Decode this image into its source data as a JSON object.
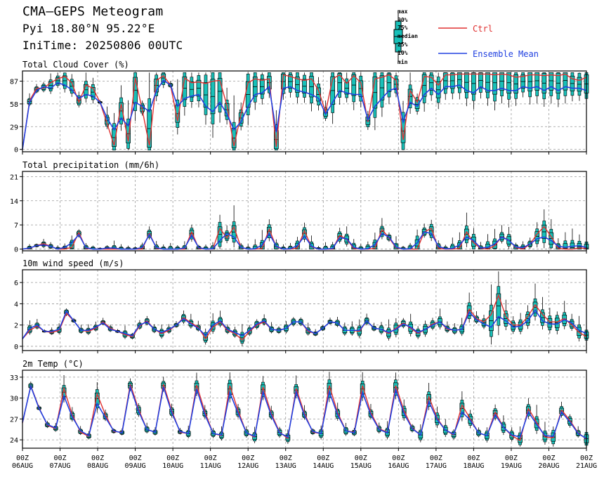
{
  "header": {
    "title": "CMA—GEPS Meteogram",
    "location": "Pyi 18.80°N 95.22°E",
    "init_time": "IniTime: 20250806 00UTC"
  },
  "legend": {
    "box_labels": [
      "max",
      "90%",
      "75%",
      "median",
      "25%",
      "10%",
      "min"
    ],
    "ctrl_label": "Ctrl",
    "mean_label": "Ensemble Mean",
    "ctrl_color": "#e03030",
    "mean_color": "#2040e0",
    "box_fill": "#18c0b8"
  },
  "x_axis": {
    "hour_label": "00Z",
    "dates": [
      "06AUG",
      "07AUG",
      "08AUG",
      "09AUG",
      "10AUG",
      "11AUG",
      "12AUG",
      "13AUG",
      "14AUG",
      "15AUG",
      "16AUG",
      "17AUG",
      "18AUG",
      "19AUG",
      "20AUG",
      "21AUG"
    ],
    "step_hours": 6
  },
  "chart_data": [
    {
      "type": "line",
      "title": "Total Cloud Cover (%)",
      "ylim": [
        -3,
        100
      ],
      "yticks": [
        0,
        29,
        58,
        87
      ],
      "series": [
        {
          "name": "Ctrl",
          "values": [
            0,
            62,
            78,
            78,
            85,
            90,
            93,
            85,
            60,
            82,
            78,
            60,
            33,
            5,
            58,
            10,
            91,
            50,
            5,
            88,
            94,
            82,
            36,
            91,
            85,
            86,
            84,
            87,
            88,
            56,
            4,
            45,
            85,
            90,
            88,
            90,
            3,
            95,
            93,
            90,
            88,
            90,
            75,
            48,
            90,
            95,
            84,
            94,
            85,
            35,
            90,
            92,
            95,
            88,
            12,
            75,
            60,
            93,
            92,
            82,
            95,
            95,
            96,
            96,
            96,
            96,
            96,
            95,
            96,
            95,
            92,
            93,
            95,
            95,
            94,
            95,
            94,
            96,
            90,
            88,
            92
          ]
        },
        {
          "name": "Ensemble Mean",
          "values": [
            0,
            60,
            75,
            80,
            78,
            85,
            82,
            76,
            65,
            70,
            68,
            60,
            40,
            25,
            40,
            30,
            60,
            55,
            48,
            75,
            88,
            82,
            55,
            65,
            68,
            70,
            55,
            48,
            60,
            45,
            25,
            35,
            55,
            70,
            72,
            80,
            22,
            78,
            80,
            75,
            73,
            70,
            65,
            45,
            60,
            75,
            72,
            70,
            70,
            38,
            55,
            65,
            75,
            78,
            35,
            60,
            55,
            70,
            78,
            70,
            80,
            80,
            82,
            75,
            72,
            80,
            75,
            75,
            78,
            75,
            75,
            80,
            78,
            80,
            75,
            80,
            75,
            80,
            78,
            78,
            75
          ]
        }
      ]
    },
    {
      "type": "line",
      "title": "Total precipitation (mm/6h)",
      "ylim": [
        -0.5,
        22.5
      ],
      "yticks": [
        0,
        7,
        14,
        21
      ],
      "series": [
        {
          "name": "Ctrl",
          "values": [
            0,
            0.2,
            1,
            1.6,
            0.8,
            0,
            0,
            0.5,
            4.8,
            0.2,
            0,
            0,
            0,
            0,
            0,
            0,
            0,
            0,
            4.6,
            0.2,
            0,
            0,
            0,
            0,
            5,
            0.2,
            0,
            0,
            6,
            3.2,
            6.4,
            0.4,
            0,
            0,
            0.2,
            5.8,
            0.6,
            0,
            0,
            0.3,
            5.3,
            0.6,
            0,
            0,
            0,
            4,
            2.8,
            0.2,
            0,
            0,
            0.2,
            5.7,
            3.2,
            0.4,
            0,
            0,
            0,
            5,
            6,
            0.2,
            0,
            0,
            0.2,
            5,
            1.8,
            0.2,
            0,
            1,
            3.6,
            2.6,
            0.4,
            0,
            1.4,
            4.4,
            6.5,
            3.6,
            0.2,
            0,
            0,
            0.3,
            0.2
          ]
        },
        {
          "name": "Ensemble Mean",
          "values": [
            0,
            0.3,
            1,
            1.2,
            0.8,
            0,
            0.5,
            1.8,
            4.2,
            0.4,
            0,
            0,
            0.3,
            0.3,
            0,
            0,
            0,
            0.5,
            4.2,
            0.4,
            0,
            0,
            0,
            0.3,
            4,
            0.4,
            0,
            0.1,
            2.5,
            4.5,
            3.5,
            0.5,
            0,
            0.1,
            1.2,
            4.5,
            0.8,
            0,
            0.1,
            1,
            3.8,
            0.8,
            0,
            0,
            0.2,
            3.3,
            3,
            0.5,
            0,
            0.1,
            1.3,
            4.5,
            3.5,
            0.6,
            0,
            0.1,
            1.8,
            5,
            4.5,
            0.8,
            0.1,
            0.2,
            1.2,
            3.5,
            2.5,
            0.3,
            0.5,
            1.5,
            3.5,
            2.5,
            0.6,
            0.4,
            1.5,
            3,
            3.5,
            2.5,
            0.8,
            0.5,
            0.8,
            1,
            0.4
          ]
        }
      ]
    },
    {
      "type": "line",
      "title": "10m wind speed (m/s)",
      "ylim": [
        -0.4,
        7.2
      ],
      "yticks": [
        0,
        2,
        4,
        6
      ],
      "series": [
        {
          "name": "Ctrl",
          "values": [
            0.7,
            1.5,
            1.9,
            1.4,
            1.3,
            1.5,
            3.1,
            2.4,
            1.5,
            1.4,
            1.7,
            2.3,
            1.7,
            1.4,
            1.1,
            0.9,
            1.9,
            2.4,
            1.6,
            1.2,
            1.5,
            2.0,
            2.7,
            2.2,
            1.8,
            0.7,
            1.8,
            2.3,
            1.5,
            1.2,
            0.6,
            1.4,
            2.0,
            2.3,
            1.6,
            1.5,
            1.7,
            2.3,
            2.3,
            1.4,
            1.2,
            1.7,
            2.3,
            2.2,
            1.5,
            1.5,
            1.4,
            2.4,
            1.7,
            1.6,
            1.2,
            1.7,
            2.2,
            1.7,
            1.2,
            1.6,
            2.1,
            2.3,
            1.6,
            1.5,
            1.6,
            3.5,
            2.6,
            2.3,
            3.0,
            4.8,
            2.8,
            2.0,
            2.0,
            2.8,
            3.9,
            3.0,
            2.3,
            2.3,
            2.6,
            2.0,
            1.3,
            0.9
          ]
        },
        {
          "name": "Ensemble Mean",
          "values": [
            0.7,
            1.7,
            2.0,
            1.4,
            1.4,
            1.6,
            3.3,
            2.4,
            1.5,
            1.5,
            1.8,
            2.2,
            1.6,
            1.4,
            1.2,
            1.0,
            2.0,
            2.3,
            1.6,
            1.3,
            1.6,
            2.0,
            2.6,
            2.1,
            1.7,
            1.0,
            2.0,
            2.4,
            1.6,
            1.3,
            1.0,
            1.5,
            2.1,
            2.4,
            1.6,
            1.5,
            1.7,
            2.3,
            2.3,
            1.5,
            1.2,
            1.7,
            2.3,
            2.2,
            1.5,
            1.5,
            1.5,
            2.4,
            1.7,
            1.6,
            1.3,
            1.6,
            2.1,
            1.8,
            1.3,
            1.6,
            2.0,
            2.3,
            1.7,
            1.5,
            1.6,
            3.2,
            2.5,
            2.1,
            1.8,
            2.8,
            2.4,
            1.8,
            1.9,
            2.4,
            3.4,
            2.4,
            2.1,
            2.1,
            2.5,
            2.2,
            1.5,
            1.2
          ]
        }
      ]
    },
    {
      "type": "line",
      "title": "2m Temp (°C)",
      "ylim": [
        22.8,
        34
      ],
      "yticks": [
        24,
        27,
        30,
        33
      ],
      "series": [
        {
          "name": "Ctrl",
          "values": [
            26.4,
            31.8,
            28.6,
            26.1,
            25.6,
            31.4,
            27.6,
            25.1,
            24.5,
            30.6,
            27.6,
            25.2,
            25.1,
            32.0,
            28.4,
            25.5,
            25.1,
            32.0,
            28.2,
            25.1,
            24.9,
            31.9,
            28.0,
            24.9,
            24.6,
            31.8,
            28.2,
            25.0,
            24.4,
            31.6,
            27.8,
            25.1,
            24.2,
            31.4,
            27.8,
            25.1,
            24.9,
            31.8,
            27.9,
            25.3,
            25.1,
            31.8,
            27.9,
            25.6,
            25.1,
            31.8,
            28.2,
            25.7,
            24.7,
            30.2,
            27.1,
            25.4,
            24.7,
            29.0,
            27.0,
            25.0,
            24.6,
            28.0,
            25.8,
            24.6,
            23.9,
            28.5,
            26.5,
            24.4,
            24.3,
            28.3,
            26.8,
            25.0,
            24.1
          ]
        },
        {
          "name": "Ensemble Mean",
          "values": [
            26.5,
            31.7,
            28.5,
            26.2,
            25.7,
            30.3,
            27.3,
            25.3,
            24.6,
            29.2,
            27.2,
            25.3,
            25.0,
            31.6,
            28.1,
            25.5,
            25.1,
            31.6,
            27.9,
            25.2,
            24.9,
            31.3,
            27.6,
            24.9,
            24.7,
            30.8,
            27.8,
            25.0,
            24.5,
            30.9,
            27.5,
            25.0,
            24.4,
            30.9,
            27.5,
            25.2,
            24.9,
            30.9,
            27.6,
            25.3,
            25.0,
            30.8,
            27.6,
            25.5,
            25.0,
            31.2,
            27.8,
            25.6,
            24.7,
            29.5,
            26.9,
            25.4,
            24.8,
            28.0,
            26.8,
            25.0,
            24.6,
            27.6,
            25.8,
            24.7,
            24.4,
            28.0,
            26.2,
            24.6,
            24.5,
            28.0,
            26.6,
            24.9,
            24.2
          ]
        }
      ]
    }
  ]
}
